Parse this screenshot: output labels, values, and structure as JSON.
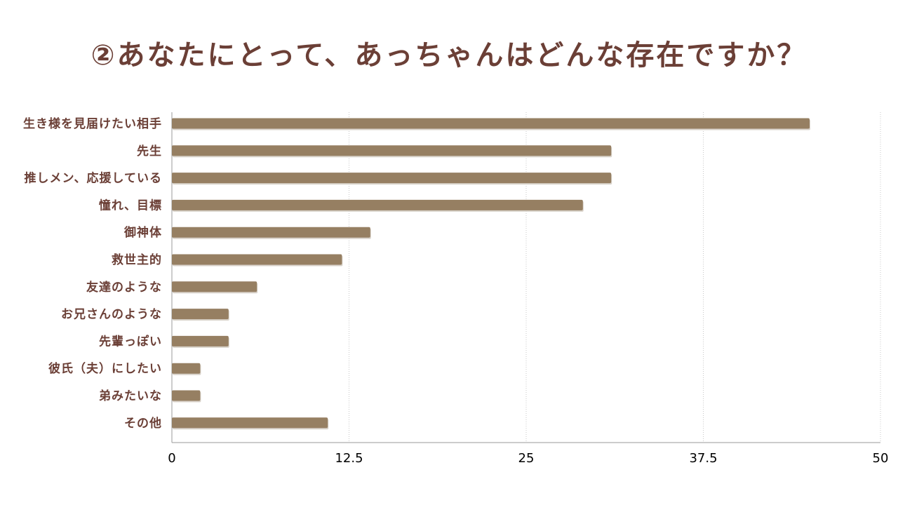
{
  "title": "②あなたにとって、あっちゃんはどんな存在ですか？",
  "colors": {
    "bar": "#967f62",
    "bar_shadow": "#d8d2ca",
    "title": "#6b3f36",
    "label": "#6b3f36",
    "grid": "#c8c8c8",
    "axis": "#9a9a9a"
  },
  "chart_data": {
    "type": "bar",
    "orientation": "horizontal",
    "title": "②あなたにとって、あっちゃんはどんな存在ですか？",
    "categories": [
      "生き様を見届けたい相手",
      "先生",
      "推しメン、応援している",
      "憧れ、目標",
      "御神体",
      "救世主的",
      "友達のような",
      "お兄さんのような",
      "先輩っぽい",
      "彼氏（夫）にしたい",
      "弟みたいな",
      "その他"
    ],
    "values": [
      45,
      31,
      31,
      29,
      14,
      12,
      6,
      4,
      4,
      2,
      2,
      11
    ],
    "xlim": [
      0,
      50
    ],
    "xticks": [
      0,
      12.5,
      25,
      37.5,
      50
    ],
    "xtick_labels": [
      "0",
      "12.5",
      "25",
      "37.5",
      "50"
    ],
    "grid": "vertical-dotted",
    "legend": "none",
    "xlabel": "",
    "ylabel": ""
  }
}
